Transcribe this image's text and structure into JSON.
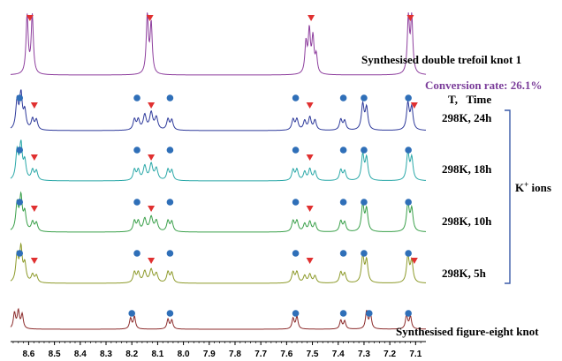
{
  "chart_data": {
    "type": "line",
    "title": "",
    "xlabel": "",
    "ylabel": "",
    "x_axis": {
      "reversed": true,
      "xlim": [
        8.67,
        7.06
      ],
      "ticks": [
        8.6,
        8.5,
        8.4,
        8.3,
        8.2,
        8.1,
        8.0,
        7.9,
        7.8,
        7.7,
        7.6,
        7.5,
        7.4,
        7.3,
        7.2,
        7.1
      ],
      "tick_labels": [
        "8.6",
        "8.5",
        "8.4",
        "8.3",
        "8.2",
        "8.1",
        "8.0",
        "7.9",
        "7.8",
        "7.7",
        "7.6",
        "7.5",
        "7.4",
        "7.3",
        "7.2",
        "7.1"
      ]
    },
    "legend": "none",
    "series": [
      {
        "name": "Synthesised double trefoil knot 1",
        "color": "#8e3f9e",
        "peaks": [
          {
            "ppm": 8.606,
            "h": 1.0,
            "w": 0.005
          },
          {
            "ppm": 8.586,
            "h": 1.0,
            "w": 0.005
          },
          {
            "ppm": 8.14,
            "h": 1.0,
            "w": 0.005
          },
          {
            "ppm": 8.125,
            "h": 0.85,
            "w": 0.005
          },
          {
            "ppm": 7.525,
            "h": 0.52,
            "w": 0.005
          },
          {
            "ppm": 7.512,
            "h": 0.72,
            "w": 0.005
          },
          {
            "ppm": 7.498,
            "h": 0.6,
            "w": 0.005
          },
          {
            "ppm": 7.485,
            "h": 0.3,
            "w": 0.005
          },
          {
            "ppm": 7.128,
            "h": 0.95,
            "w": 0.005
          },
          {
            "ppm": 7.115,
            "h": 0.95,
            "w": 0.005
          }
        ],
        "markers": [
          {
            "shape": "triangle",
            "ppm": 8.595
          },
          {
            "shape": "triangle",
            "ppm": 8.13
          },
          {
            "shape": "triangle",
            "ppm": 7.505
          },
          {
            "shape": "triangle",
            "ppm": 7.12
          }
        ]
      },
      {
        "name": "298K, 24h",
        "color": "#2e3a9b",
        "peaks": [
          {
            "ppm": 8.645,
            "h": 0.8,
            "w": 0.006
          },
          {
            "ppm": 8.63,
            "h": 1.0,
            "w": 0.006
          },
          {
            "ppm": 8.615,
            "h": 0.5,
            "w": 0.006
          },
          {
            "ppm": 8.585,
            "h": 0.3,
            "w": 0.006
          },
          {
            "ppm": 8.57,
            "h": 0.28,
            "w": 0.006
          },
          {
            "ppm": 8.19,
            "h": 0.3,
            "w": 0.006
          },
          {
            "ppm": 8.175,
            "h": 0.28,
            "w": 0.006
          },
          {
            "ppm": 8.15,
            "h": 0.42,
            "w": 0.007
          },
          {
            "ppm": 8.125,
            "h": 0.48,
            "w": 0.007
          },
          {
            "ppm": 8.105,
            "h": 0.35,
            "w": 0.007
          },
          {
            "ppm": 8.06,
            "h": 0.3,
            "w": 0.006
          },
          {
            "ppm": 8.045,
            "h": 0.28,
            "w": 0.006
          },
          {
            "ppm": 7.575,
            "h": 0.3,
            "w": 0.006
          },
          {
            "ppm": 7.56,
            "h": 0.3,
            "w": 0.006
          },
          {
            "ppm": 7.53,
            "h": 0.26,
            "w": 0.006
          },
          {
            "ppm": 7.51,
            "h": 0.36,
            "w": 0.006
          },
          {
            "ppm": 7.49,
            "h": 0.28,
            "w": 0.006
          },
          {
            "ppm": 7.39,
            "h": 0.3,
            "w": 0.006
          },
          {
            "ppm": 7.375,
            "h": 0.26,
            "w": 0.006
          },
          {
            "ppm": 7.305,
            "h": 0.72,
            "w": 0.006
          },
          {
            "ppm": 7.29,
            "h": 0.62,
            "w": 0.006
          },
          {
            "ppm": 7.13,
            "h": 0.75,
            "w": 0.006
          },
          {
            "ppm": 7.115,
            "h": 0.62,
            "w": 0.006
          }
        ],
        "markers": [
          {
            "shape": "circle",
            "ppm": 8.635
          },
          {
            "shape": "triangle",
            "ppm": 8.578
          },
          {
            "shape": "circle",
            "ppm": 8.18
          },
          {
            "shape": "triangle",
            "ppm": 8.125
          },
          {
            "shape": "circle",
            "ppm": 8.052
          },
          {
            "shape": "circle",
            "ppm": 7.565
          },
          {
            "shape": "triangle",
            "ppm": 7.51
          },
          {
            "shape": "circle",
            "ppm": 7.38
          },
          {
            "shape": "circle",
            "ppm": 7.3
          },
          {
            "shape": "circle",
            "ppm": 7.128
          },
          {
            "shape": "triangle",
            "ppm": 7.105
          }
        ]
      },
      {
        "name": "298K, 18h",
        "color": "#2aa8a8",
        "peaks": [
          {
            "ppm": 8.645,
            "h": 0.8,
            "w": 0.006
          },
          {
            "ppm": 8.63,
            "h": 1.0,
            "w": 0.006
          },
          {
            "ppm": 8.615,
            "h": 0.5,
            "w": 0.006
          },
          {
            "ppm": 8.585,
            "h": 0.28,
            "w": 0.006
          },
          {
            "ppm": 8.57,
            "h": 0.26,
            "w": 0.006
          },
          {
            "ppm": 8.19,
            "h": 0.3,
            "w": 0.006
          },
          {
            "ppm": 8.175,
            "h": 0.28,
            "w": 0.006
          },
          {
            "ppm": 8.15,
            "h": 0.4,
            "w": 0.007
          },
          {
            "ppm": 8.125,
            "h": 0.45,
            "w": 0.007
          },
          {
            "ppm": 8.105,
            "h": 0.33,
            "w": 0.007
          },
          {
            "ppm": 8.06,
            "h": 0.3,
            "w": 0.006
          },
          {
            "ppm": 8.045,
            "h": 0.28,
            "w": 0.006
          },
          {
            "ppm": 7.575,
            "h": 0.3,
            "w": 0.006
          },
          {
            "ppm": 7.56,
            "h": 0.3,
            "w": 0.006
          },
          {
            "ppm": 7.53,
            "h": 0.24,
            "w": 0.006
          },
          {
            "ppm": 7.51,
            "h": 0.32,
            "w": 0.006
          },
          {
            "ppm": 7.49,
            "h": 0.26,
            "w": 0.006
          },
          {
            "ppm": 7.39,
            "h": 0.3,
            "w": 0.006
          },
          {
            "ppm": 7.375,
            "h": 0.26,
            "w": 0.006
          },
          {
            "ppm": 7.305,
            "h": 0.72,
            "w": 0.006
          },
          {
            "ppm": 7.29,
            "h": 0.62,
            "w": 0.006
          },
          {
            "ppm": 7.13,
            "h": 0.78,
            "w": 0.006
          },
          {
            "ppm": 7.115,
            "h": 0.62,
            "w": 0.006
          }
        ],
        "markers": [
          {
            "shape": "circle",
            "ppm": 8.635
          },
          {
            "shape": "triangle",
            "ppm": 8.578
          },
          {
            "shape": "circle",
            "ppm": 8.18
          },
          {
            "shape": "triangle",
            "ppm": 8.125
          },
          {
            "shape": "circle",
            "ppm": 8.052
          },
          {
            "shape": "circle",
            "ppm": 7.565
          },
          {
            "shape": "triangle",
            "ppm": 7.51
          },
          {
            "shape": "circle",
            "ppm": 7.38
          },
          {
            "shape": "circle",
            "ppm": 7.3
          },
          {
            "shape": "circle",
            "ppm": 7.128
          }
        ]
      },
      {
        "name": "298K, 10h",
        "color": "#3aa04a",
        "peaks": [
          {
            "ppm": 8.645,
            "h": 0.75,
            "w": 0.006
          },
          {
            "ppm": 8.63,
            "h": 0.95,
            "w": 0.006
          },
          {
            "ppm": 8.615,
            "h": 0.5,
            "w": 0.006
          },
          {
            "ppm": 8.585,
            "h": 0.26,
            "w": 0.006
          },
          {
            "ppm": 8.57,
            "h": 0.24,
            "w": 0.006
          },
          {
            "ppm": 8.19,
            "h": 0.3,
            "w": 0.006
          },
          {
            "ppm": 8.175,
            "h": 0.28,
            "w": 0.006
          },
          {
            "ppm": 8.15,
            "h": 0.36,
            "w": 0.007
          },
          {
            "ppm": 8.125,
            "h": 0.4,
            "w": 0.007
          },
          {
            "ppm": 8.105,
            "h": 0.3,
            "w": 0.007
          },
          {
            "ppm": 8.06,
            "h": 0.3,
            "w": 0.006
          },
          {
            "ppm": 8.045,
            "h": 0.28,
            "w": 0.006
          },
          {
            "ppm": 7.575,
            "h": 0.3,
            "w": 0.006
          },
          {
            "ppm": 7.56,
            "h": 0.3,
            "w": 0.006
          },
          {
            "ppm": 7.53,
            "h": 0.22,
            "w": 0.006
          },
          {
            "ppm": 7.51,
            "h": 0.28,
            "w": 0.006
          },
          {
            "ppm": 7.49,
            "h": 0.24,
            "w": 0.006
          },
          {
            "ppm": 7.39,
            "h": 0.3,
            "w": 0.006
          },
          {
            "ppm": 7.375,
            "h": 0.26,
            "w": 0.006
          },
          {
            "ppm": 7.305,
            "h": 0.75,
            "w": 0.006
          },
          {
            "ppm": 7.29,
            "h": 0.62,
            "w": 0.006
          },
          {
            "ppm": 7.13,
            "h": 0.8,
            "w": 0.006
          },
          {
            "ppm": 7.115,
            "h": 0.62,
            "w": 0.006
          }
        ],
        "markers": [
          {
            "shape": "circle",
            "ppm": 8.635
          },
          {
            "shape": "triangle",
            "ppm": 8.578
          },
          {
            "shape": "circle",
            "ppm": 8.18
          },
          {
            "shape": "triangle",
            "ppm": 8.125
          },
          {
            "shape": "circle",
            "ppm": 8.052
          },
          {
            "shape": "circle",
            "ppm": 7.565
          },
          {
            "shape": "triangle",
            "ppm": 7.51
          },
          {
            "shape": "circle",
            "ppm": 7.38
          },
          {
            "shape": "circle",
            "ppm": 7.3
          },
          {
            "shape": "circle",
            "ppm": 7.128
          }
        ]
      },
      {
        "name": "298K, 5h",
        "color": "#8d9a2a",
        "peaks": [
          {
            "ppm": 8.645,
            "h": 0.75,
            "w": 0.006
          },
          {
            "ppm": 8.63,
            "h": 0.95,
            "w": 0.006
          },
          {
            "ppm": 8.615,
            "h": 0.5,
            "w": 0.006
          },
          {
            "ppm": 8.585,
            "h": 0.22,
            "w": 0.006
          },
          {
            "ppm": 8.57,
            "h": 0.2,
            "w": 0.006
          },
          {
            "ppm": 8.19,
            "h": 0.3,
            "w": 0.006
          },
          {
            "ppm": 8.175,
            "h": 0.28,
            "w": 0.006
          },
          {
            "ppm": 8.15,
            "h": 0.32,
            "w": 0.007
          },
          {
            "ppm": 8.125,
            "h": 0.36,
            "w": 0.007
          },
          {
            "ppm": 8.105,
            "h": 0.26,
            "w": 0.007
          },
          {
            "ppm": 8.06,
            "h": 0.3,
            "w": 0.006
          },
          {
            "ppm": 8.045,
            "h": 0.28,
            "w": 0.006
          },
          {
            "ppm": 7.575,
            "h": 0.3,
            "w": 0.006
          },
          {
            "ppm": 7.56,
            "h": 0.3,
            "w": 0.006
          },
          {
            "ppm": 7.53,
            "h": 0.2,
            "w": 0.006
          },
          {
            "ppm": 7.51,
            "h": 0.24,
            "w": 0.006
          },
          {
            "ppm": 7.49,
            "h": 0.2,
            "w": 0.006
          },
          {
            "ppm": 7.39,
            "h": 0.3,
            "w": 0.006
          },
          {
            "ppm": 7.375,
            "h": 0.26,
            "w": 0.006
          },
          {
            "ppm": 7.305,
            "h": 0.75,
            "w": 0.006
          },
          {
            "ppm": 7.29,
            "h": 0.62,
            "w": 0.006
          },
          {
            "ppm": 7.13,
            "h": 0.75,
            "w": 0.006
          },
          {
            "ppm": 7.115,
            "h": 0.6,
            "w": 0.006
          }
        ],
        "markers": [
          {
            "shape": "circle",
            "ppm": 8.635
          },
          {
            "shape": "triangle",
            "ppm": 8.578
          },
          {
            "shape": "circle",
            "ppm": 8.18
          },
          {
            "shape": "triangle",
            "ppm": 8.125
          },
          {
            "shape": "circle",
            "ppm": 8.052
          },
          {
            "shape": "circle",
            "ppm": 7.565
          },
          {
            "shape": "triangle",
            "ppm": 7.51
          },
          {
            "shape": "circle",
            "ppm": 7.38
          },
          {
            "shape": "circle",
            "ppm": 7.3
          },
          {
            "shape": "circle",
            "ppm": 7.128
          },
          {
            "shape": "triangle",
            "ppm": 7.105
          }
        ]
      },
      {
        "name": "Synthesised figure-eight knot",
        "color": "#8b2a2a",
        "peaks": [
          {
            "ppm": 8.655,
            "h": 0.9,
            "w": 0.005
          },
          {
            "ppm": 8.64,
            "h": 1.0,
            "w": 0.005
          },
          {
            "ppm": 8.625,
            "h": 0.8,
            "w": 0.005
          },
          {
            "ppm": 8.205,
            "h": 0.6,
            "w": 0.005
          },
          {
            "ppm": 8.19,
            "h": 0.7,
            "w": 0.005
          },
          {
            "ppm": 8.06,
            "h": 0.55,
            "w": 0.005
          },
          {
            "ppm": 8.045,
            "h": 0.5,
            "w": 0.005
          },
          {
            "ppm": 7.575,
            "h": 0.6,
            "w": 0.005
          },
          {
            "ppm": 7.56,
            "h": 0.7,
            "w": 0.005
          },
          {
            "ppm": 7.39,
            "h": 0.5,
            "w": 0.005
          },
          {
            "ppm": 7.375,
            "h": 0.45,
            "w": 0.005
          },
          {
            "ppm": 7.29,
            "h": 1.0,
            "w": 0.005
          },
          {
            "ppm": 7.275,
            "h": 0.85,
            "w": 0.005
          },
          {
            "ppm": 7.135,
            "h": 0.8,
            "w": 0.005
          },
          {
            "ppm": 7.12,
            "h": 0.7,
            "w": 0.005
          }
        ],
        "markers": [
          {
            "shape": "circle",
            "ppm": 8.2
          },
          {
            "shape": "circle",
            "ppm": 8.052
          },
          {
            "shape": "circle",
            "ppm": 7.565
          },
          {
            "shape": "circle",
            "ppm": 7.38
          },
          {
            "shape": "circle",
            "ppm": 7.28
          },
          {
            "shape": "circle",
            "ppm": 7.128
          }
        ]
      }
    ],
    "annotations": {
      "conversion_rate": "Conversion rate: 26.1%",
      "column_header": "T,   Time",
      "bracket_label_main": "K",
      "bracket_label_sup": "+",
      "bracket_label_tail": " ions"
    },
    "colors": {
      "circle_marker": "#2f6fb8",
      "triangle_marker": "#e03030",
      "bracket": "#3a5aa8",
      "conversion_text": "#7b3d9a"
    }
  }
}
